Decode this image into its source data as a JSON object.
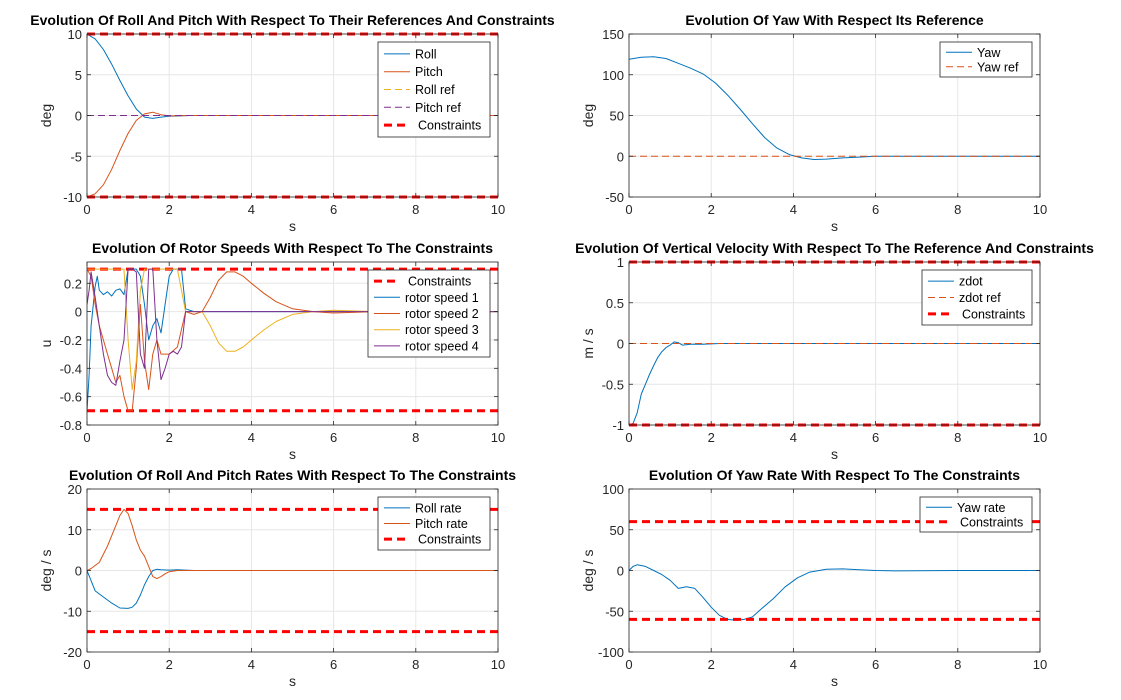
{
  "colors": {
    "roll": "#0072BD",
    "pitch": "#D95319",
    "roll_ref": "#EDB120",
    "pitch_ref": "#7E2F8E",
    "constraint": "#FF0000",
    "grid": "#E6E6E6",
    "axis": "#262626"
  },
  "chart_data": [
    {
      "id": "roll_pitch",
      "type": "line",
      "title": "Evolution Of Roll And Pitch With Respect To Their References And Constraints",
      "xlabel": "s",
      "ylabel": "deg",
      "xlim": [
        0,
        10
      ],
      "ylim": [
        -10,
        10
      ],
      "xticks": [
        0,
        2,
        4,
        6,
        8,
        10
      ],
      "yticks": [
        -10,
        -5,
        0,
        5,
        10
      ],
      "grid": true,
      "legend_position": "top-right",
      "series": [
        {
          "name": "Roll",
          "color": "#0072BD",
          "style": "solid",
          "x": [
            0,
            0.2,
            0.4,
            0.6,
            0.8,
            1.0,
            1.2,
            1.4,
            1.6,
            1.8,
            2.0,
            2.5,
            3,
            10
          ],
          "y": [
            10,
            9.4,
            8.1,
            6.3,
            4.3,
            2.4,
            0.8,
            -0.2,
            -0.35,
            -0.2,
            -0.1,
            0,
            0,
            0
          ]
        },
        {
          "name": "Pitch",
          "color": "#D95319",
          "style": "solid",
          "x": [
            0,
            0.2,
            0.4,
            0.6,
            0.8,
            1.0,
            1.2,
            1.4,
            1.6,
            1.8,
            2.0,
            2.5,
            3,
            10
          ],
          "y": [
            -10,
            -9.6,
            -8.5,
            -6.6,
            -4.3,
            -2.2,
            -0.6,
            0.2,
            0.4,
            0.1,
            -0.05,
            0,
            0,
            0
          ]
        },
        {
          "name": "Roll ref",
          "color": "#EDB120",
          "style": "dashed",
          "x": [
            0,
            10
          ],
          "y": [
            0,
            0
          ]
        },
        {
          "name": "Pitch ref",
          "color": "#7E2F8E",
          "style": "dashed",
          "x": [
            0,
            10
          ],
          "y": [
            0,
            0
          ]
        },
        {
          "name": "Constraints",
          "color": "#FF0000",
          "style": "constraint",
          "x": [
            0,
            10
          ],
          "y": [
            10,
            10
          ]
        },
        {
          "name": "",
          "legend": false,
          "color": "#FF0000",
          "style": "constraint",
          "x": [
            0,
            10
          ],
          "y": [
            -10,
            -10
          ]
        }
      ]
    },
    {
      "id": "yaw",
      "type": "line",
      "title": "Evolution Of Yaw With Respect Its Reference",
      "xlabel": "s",
      "ylabel": "deg",
      "xlim": [
        0,
        10
      ],
      "ylim": [
        -50,
        150
      ],
      "xticks": [
        0,
        2,
        4,
        6,
        8,
        10
      ],
      "yticks": [
        -50,
        0,
        50,
        100,
        150
      ],
      "grid": true,
      "legend_position": "top-right",
      "series": [
        {
          "name": "Yaw",
          "color": "#0072BD",
          "style": "solid",
          "x": [
            0,
            0.3,
            0.6,
            0.9,
            1.2,
            1.5,
            1.8,
            2.1,
            2.4,
            2.7,
            3.0,
            3.3,
            3.6,
            3.9,
            4.2,
            4.5,
            4.8,
            5.2,
            5.6,
            6.0,
            7.0,
            10
          ],
          "y": [
            119,
            121.5,
            122,
            120,
            114,
            108,
            101,
            90,
            75,
            58,
            40,
            23,
            10,
            2,
            -2,
            -4,
            -3.5,
            -2,
            -1,
            0,
            0,
            0
          ]
        },
        {
          "name": "Yaw ref",
          "color": "#D95319",
          "style": "dashed",
          "x": [
            0,
            10
          ],
          "y": [
            0,
            0
          ]
        }
      ]
    },
    {
      "id": "rotor",
      "type": "line",
      "title": "Evolution Of Rotor Speeds With Respect To The Constraints",
      "xlabel": "s",
      "ylabel": "u",
      "xlim": [
        0,
        10
      ],
      "ylim": [
        -0.8,
        0.35
      ],
      "xticks": [
        0,
        2,
        4,
        6,
        8,
        10
      ],
      "yticks": [
        -0.8,
        -0.6,
        -0.4,
        -0.2,
        0,
        0.2
      ],
      "grid": true,
      "legend_position": "top-right",
      "series": [
        {
          "name": "Constraints",
          "color": "#FF0000",
          "style": "constraint",
          "x": [
            0,
            10
          ],
          "y": [
            0.3,
            0.3
          ]
        },
        {
          "name": "",
          "legend": false,
          "color": "#FF0000",
          "style": "constraint",
          "x": [
            0,
            10
          ],
          "y": [
            -0.7,
            -0.7
          ]
        },
        {
          "name": "rotor speed 1",
          "color": "#0072BD",
          "style": "solid",
          "x": [
            0,
            0.05,
            0.1,
            0.2,
            0.25,
            0.3,
            0.4,
            0.5,
            0.6,
            0.7,
            0.8,
            0.9,
            1.0,
            1.1,
            1.2,
            1.3,
            1.4,
            1.5,
            1.6,
            1.7,
            1.8,
            1.9,
            2.0,
            2.1,
            2.2,
            2.3,
            2.4,
            2.6,
            3.0,
            10
          ],
          "y": [
            -0.7,
            -0.45,
            -0.1,
            0.18,
            0.25,
            0.15,
            0.12,
            0.14,
            0.11,
            0.15,
            0.16,
            0.12,
            0.3,
            0.3,
            0.3,
            0.25,
            0.05,
            -0.2,
            -0.1,
            -0.05,
            -0.15,
            0.05,
            0.25,
            0.3,
            0.3,
            0.3,
            0.02,
            0.0,
            0.0,
            0.0
          ]
        },
        {
          "name": "rotor speed 2",
          "color": "#D95319",
          "style": "solid",
          "x": [
            0,
            0.1,
            0.2,
            0.3,
            0.4,
            0.5,
            0.6,
            0.7,
            0.8,
            0.9,
            1.0,
            1.1,
            1.2,
            1.3,
            1.4,
            1.5,
            1.6,
            1.7,
            1.8,
            2.0,
            2.2,
            2.4,
            2.6,
            2.8,
            3.0,
            3.2,
            3.4,
            3.6,
            3.8,
            4.0,
            4.3,
            4.6,
            5.0,
            5.5,
            6.0,
            7.0,
            10
          ],
          "y": [
            0.3,
            0.25,
            0.05,
            -0.1,
            -0.2,
            -0.3,
            -0.4,
            -0.5,
            -0.45,
            -0.6,
            -0.7,
            -0.7,
            -0.4,
            0.05,
            -0.35,
            -0.55,
            -0.3,
            -0.2,
            -0.3,
            -0.3,
            -0.25,
            0.0,
            -0.02,
            0.0,
            0.1,
            0.22,
            0.28,
            0.28,
            0.25,
            0.2,
            0.13,
            0.07,
            0.02,
            0.0,
            -0.01,
            0.0,
            0.0
          ]
        },
        {
          "name": "rotor speed 3",
          "color": "#EDB120",
          "style": "solid",
          "x": [
            0,
            0.3,
            0.6,
            0.9,
            1.0,
            1.1,
            1.2,
            1.3,
            1.4,
            1.5,
            1.6,
            1.7,
            1.8,
            1.9,
            2.0,
            2.2,
            2.4,
            2.6,
            2.8,
            3.0,
            3.2,
            3.4,
            3.6,
            3.8,
            4.0,
            4.3,
            4.6,
            5.0,
            5.5,
            6.0,
            7.0,
            10
          ],
          "y": [
            0.3,
            0.3,
            0.3,
            0.3,
            -0.2,
            -0.55,
            -0.35,
            0.15,
            0.3,
            0.3,
            0.3,
            0.3,
            0.3,
            0.3,
            0.3,
            0.3,
            0.0,
            0.0,
            0.0,
            -0.1,
            -0.22,
            -0.28,
            -0.28,
            -0.25,
            -0.2,
            -0.13,
            -0.07,
            -0.02,
            0.0,
            0.01,
            0.0,
            0.0
          ]
        },
        {
          "name": "rotor speed 4",
          "color": "#7E2F8E",
          "style": "solid",
          "x": [
            0,
            0.05,
            0.1,
            0.2,
            0.3,
            0.4,
            0.5,
            0.6,
            0.7,
            0.8,
            0.9,
            1.0,
            1.1,
            1.2,
            1.3,
            1.4,
            1.5,
            1.6,
            1.7,
            1.8,
            1.9,
            2.0,
            2.1,
            2.2,
            2.3,
            2.4,
            2.6,
            3.0,
            10
          ],
          "y": [
            0.05,
            0.15,
            0.28,
            0.1,
            -0.1,
            -0.3,
            -0.45,
            -0.5,
            -0.52,
            -0.35,
            -0.2,
            0.3,
            0.3,
            0.28,
            -0.3,
            -0.4,
            0.3,
            0.3,
            -0.2,
            -0.48,
            -0.4,
            -0.3,
            -0.28,
            -0.3,
            -0.25,
            0.0,
            0.0,
            0.0,
            0.0
          ]
        }
      ]
    },
    {
      "id": "vz",
      "type": "line",
      "title": "Evolution Of Vertical Velocity With Respect To The Reference And Constraints",
      "xlabel": "s",
      "ylabel": "m / s",
      "xlim": [
        0,
        10
      ],
      "ylim": [
        -1,
        1
      ],
      "xticks": [
        0,
        2,
        4,
        6,
        8,
        10
      ],
      "yticks": [
        -1,
        -0.5,
        0,
        0.5,
        1
      ],
      "grid": true,
      "legend_position": "top-right",
      "series": [
        {
          "name": "zdot",
          "color": "#0072BD",
          "style": "solid",
          "x": [
            0,
            0.1,
            0.2,
            0.3,
            0.4,
            0.5,
            0.6,
            0.7,
            0.8,
            0.9,
            1.0,
            1.1,
            1.2,
            1.3,
            1.5,
            1.8,
            2.2,
            3,
            10
          ],
          "y": [
            -1.0,
            -0.98,
            -0.85,
            -0.62,
            -0.5,
            -0.38,
            -0.27,
            -0.17,
            -0.1,
            -0.05,
            -0.02,
            0.02,
            0.01,
            -0.02,
            -0.01,
            -0.01,
            0,
            0,
            0
          ]
        },
        {
          "name": "zdot ref",
          "color": "#D95319",
          "style": "dashed",
          "x": [
            0,
            10
          ],
          "y": [
            0,
            0
          ]
        },
        {
          "name": "Constraints",
          "color": "#FF0000",
          "style": "constraint",
          "x": [
            0,
            10
          ],
          "y": [
            1,
            1
          ]
        },
        {
          "name": "",
          "legend": false,
          "color": "#FF0000",
          "style": "constraint",
          "x": [
            0,
            10
          ],
          "y": [
            -1,
            -1
          ]
        }
      ]
    },
    {
      "id": "rp_rate",
      "type": "line",
      "title": "Evolution Of Roll And Pitch Rates With Respect To The Constraints",
      "xlabel": "s",
      "ylabel": "deg / s",
      "xlim": [
        0,
        10
      ],
      "ylim": [
        -20,
        20
      ],
      "xticks": [
        0,
        2,
        4,
        6,
        8,
        10
      ],
      "yticks": [
        -20,
        -10,
        0,
        10,
        20
      ],
      "grid": true,
      "legend_position": "top-right",
      "series": [
        {
          "name": "Roll rate",
          "color": "#0072BD",
          "style": "solid",
          "x": [
            0,
            0.1,
            0.2,
            0.4,
            0.6,
            0.8,
            1.0,
            1.1,
            1.2,
            1.3,
            1.4,
            1.5,
            1.6,
            1.7,
            1.8,
            2.0,
            2.2,
            2.4,
            2.6,
            3,
            10
          ],
          "y": [
            0,
            -2.5,
            -5,
            -6.5,
            -8,
            -9.2,
            -9.3,
            -9,
            -8,
            -6,
            -3.5,
            -1.5,
            0,
            0.3,
            0.2,
            0.1,
            0.2,
            0.1,
            0,
            0,
            0
          ]
        },
        {
          "name": "Pitch rate",
          "color": "#D95319",
          "style": "solid",
          "x": [
            0,
            0.1,
            0.3,
            0.5,
            0.7,
            0.8,
            0.9,
            1.0,
            1.1,
            1.2,
            1.3,
            1.4,
            1.5,
            1.6,
            1.7,
            1.8,
            1.9,
            2.0,
            2.2,
            2.5,
            3,
            10
          ],
          "y": [
            0,
            0.5,
            2,
            6,
            11,
            13.5,
            15,
            14,
            11,
            7.5,
            5,
            3.5,
            1,
            -1.5,
            -2,
            -1.5,
            -0.8,
            -0.3,
            0,
            0,
            0,
            0
          ]
        },
        {
          "name": "Constraints",
          "color": "#FF0000",
          "style": "constraint",
          "x": [
            0,
            10
          ],
          "y": [
            15,
            15
          ]
        },
        {
          "name": "",
          "legend": false,
          "color": "#FF0000",
          "style": "constraint",
          "x": [
            0,
            10
          ],
          "y": [
            -15,
            -15
          ]
        }
      ]
    },
    {
      "id": "yaw_rate",
      "type": "line",
      "title": "Evolution Of Yaw Rate With Respect To The Constraints",
      "xlabel": "s",
      "ylabel": "deg / s",
      "xlim": [
        0,
        10
      ],
      "ylim": [
        -100,
        100
      ],
      "xticks": [
        0,
        2,
        4,
        6,
        8,
        10
      ],
      "yticks": [
        -100,
        -50,
        0,
        50,
        100
      ],
      "grid": true,
      "legend_position": "top-right",
      "series": [
        {
          "name": "Yaw rate",
          "color": "#0072BD",
          "style": "solid",
          "x": [
            0,
            0.1,
            0.2,
            0.4,
            0.6,
            0.8,
            1.0,
            1.2,
            1.4,
            1.6,
            1.8,
            2.0,
            2.2,
            2.4,
            2.6,
            2.8,
            3.0,
            3.2,
            3.5,
            3.8,
            4.1,
            4.4,
            4.8,
            5.2,
            5.6,
            6.0,
            6.5,
            7.0,
            8.0,
            10
          ],
          "y": [
            0,
            5,
            7,
            5,
            0,
            -5,
            -12,
            -22,
            -20,
            -22,
            -33,
            -45,
            -55,
            -60,
            -61,
            -60,
            -57,
            -48,
            -35,
            -20,
            -9,
            -2,
            1.5,
            2,
            1,
            0,
            -0.5,
            -0.3,
            0,
            0
          ]
        },
        {
          "name": "Constraints",
          "color": "#FF0000",
          "style": "constraint",
          "x": [
            0,
            10
          ],
          "y": [
            60,
            60
          ]
        },
        {
          "name": "",
          "legend": false,
          "color": "#FF0000",
          "style": "constraint",
          "x": [
            0,
            10
          ],
          "y": [
            -60,
            -60
          ]
        }
      ]
    }
  ]
}
